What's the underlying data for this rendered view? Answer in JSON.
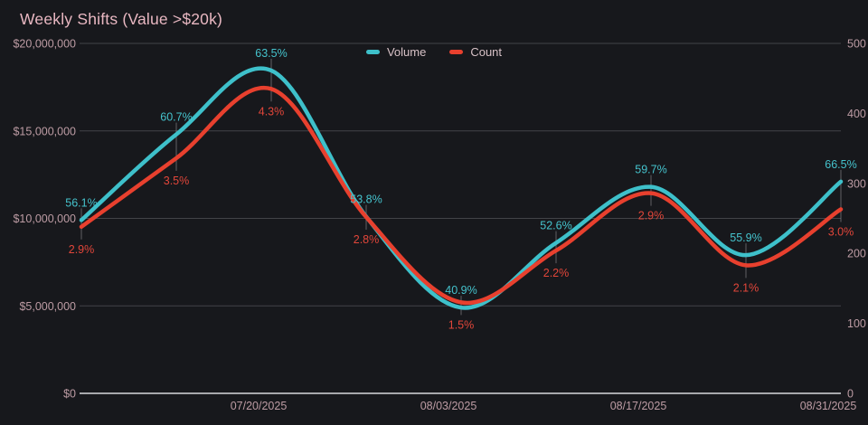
{
  "title": "Weekly Shifts (Value >$20k)",
  "legend": [
    {
      "label": "Volume",
      "color": "#3ec0ca"
    },
    {
      "label": "Count",
      "color": "#e8402e"
    }
  ],
  "colors": {
    "background": "#17181c",
    "title_text": "#e9b8c2",
    "axis_text": "#bd9ca4",
    "volume_line": "#3ec0ca",
    "volume_label_text": "#45c3cd",
    "count_line": "#e8402e",
    "count_label_text": "#e2463a",
    "gridline": "rgba(190,192,202,0.26)",
    "baseline_axis": "#d7d8db"
  },
  "chart_data": {
    "type": "line",
    "title": "Weekly Shifts (Value >$20k)",
    "x_count": 9,
    "x_tick_labels": [
      {
        "index": 2,
        "label": "07/20/2025"
      },
      {
        "index": 4,
        "label": "08/03/2025"
      },
      {
        "index": 6,
        "label": "08/17/2025"
      },
      {
        "index": 8,
        "label": "08/31/2025"
      }
    ],
    "left_axis": {
      "min": 0,
      "max": 20000000,
      "ticks": [
        {
          "value": 0,
          "label": "$0"
        },
        {
          "value": 5000000,
          "label": "$5,000,000"
        },
        {
          "value": 10000000,
          "label": "$10,000,000"
        },
        {
          "value": 15000000,
          "label": "$15,000,000"
        },
        {
          "value": 20000000,
          "label": "$20,000,000"
        }
      ]
    },
    "right_axis": {
      "min": 0,
      "max": 500,
      "ticks": [
        {
          "value": 0,
          "label": "0"
        },
        {
          "value": 100,
          "label": "100"
        },
        {
          "value": 200,
          "label": "200"
        },
        {
          "value": 300,
          "label": "300"
        },
        {
          "value": 400,
          "label": "400"
        },
        {
          "value": 500,
          "label": "500"
        }
      ]
    },
    "series": [
      {
        "name": "Volume",
        "axis": "left",
        "color": "#3ec0ca",
        "label_color": "#45c3cd",
        "values": [
          9900000,
          14800000,
          18450000,
          10100000,
          4900000,
          8600000,
          11800000,
          7900000,
          12100000
        ],
        "point_labels": [
          "56.1%",
          "60.7%",
          "63.5%",
          "53.8%",
          "40.9%",
          "52.6%",
          "59.7%",
          "55.9%",
          "66.5%"
        ]
      },
      {
        "name": "Count",
        "axis": "right",
        "color": "#e8402e",
        "label_color": "#e2463a",
        "values": [
          238,
          336,
          435,
          252,
          130,
          204,
          286,
          183,
          263
        ],
        "point_labels": [
          "2.9%",
          "3.5%",
          "4.3%",
          "2.8%",
          "1.5%",
          "2.2%",
          "2.9%",
          "2.1%",
          "3.0%"
        ]
      }
    ],
    "legend_position": "top-center",
    "grid": "horizontal-left-axis-only"
  }
}
